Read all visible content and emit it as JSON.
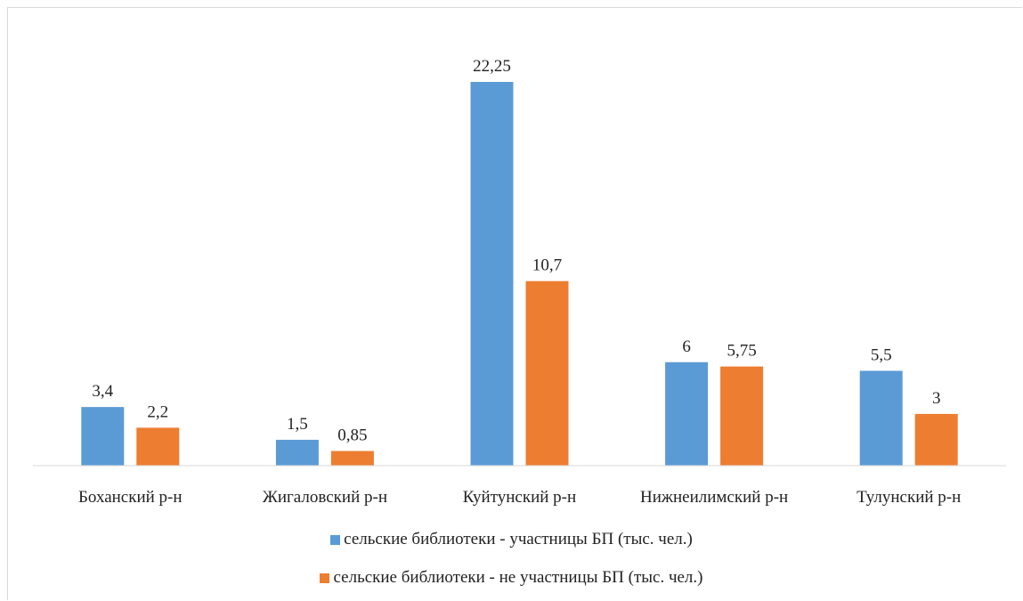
{
  "chart_data": {
    "type": "bar",
    "categories": [
      "Боханский р-н",
      "Жигаловский р-н",
      "Куйтунский р-н",
      "Нижнеилимский р-н",
      "Тулунский р-н"
    ],
    "series": [
      {
        "name": "сельские библиотеки - участницы БП (тыс. чел.)",
        "values": [
          3.4,
          1.5,
          22.25,
          6,
          5.5
        ],
        "labels": [
          "3,4",
          "1,5",
          "22,25",
          "6",
          "5,5"
        ],
        "color": "#5b9bd5"
      },
      {
        "name": "сельские библиотеки - не участницы БП (тыс. чел.)",
        "values": [
          2.2,
          0.85,
          10.7,
          5.75,
          3
        ],
        "labels": [
          "2,2",
          "0,85",
          "10,7",
          "5,75",
          "3"
        ],
        "color": "#ed7d31"
      }
    ],
    "ylim": [
      0,
      23.7
    ],
    "grid": false,
    "legend_position": "bottom"
  }
}
